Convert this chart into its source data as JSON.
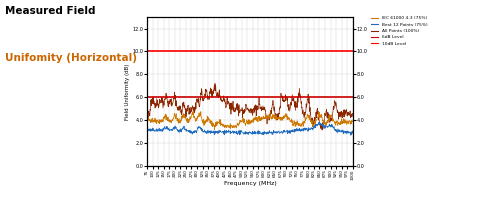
{
  "title_line1": "Measured Field",
  "title_line2": "Unifomity (Horizontal)",
  "xlabel": "Frequency (MHz)",
  "ylabel": "Field Uniformity (dB)",
  "ylim": [
    0.0,
    13.0
  ],
  "xlim": [
    75,
    1000
  ],
  "yticks": [
    0.0,
    2.0,
    4.0,
    6.0,
    8.0,
    10.0,
    12.0
  ],
  "xticks": [
    75,
    100,
    125,
    150,
    175,
    200,
    225,
    250,
    275,
    300,
    325,
    350,
    375,
    400,
    425,
    450,
    475,
    500,
    525,
    550,
    575,
    600,
    625,
    650,
    675,
    700,
    725,
    750,
    775,
    800,
    825,
    850,
    875,
    900,
    925,
    950,
    975,
    1000
  ],
  "hline_6dB": 6.0,
  "hline_10dB": 10.0,
  "hline_6dB_color": "#cc0000",
  "hline_10dB_color": "#ff0000",
  "color_IEC": "#cc7700",
  "color_best12": "#1f6bbf",
  "color_all": "#8b2500",
  "legend_labels": [
    "IEC 61000 4-3 (75%)",
    "Best 12 Points (75%)",
    "All Points (100%)",
    "6dB Level",
    "10dB Level"
  ],
  "background_color": "#ffffff",
  "grid_color": "#cccccc",
  "title_color_line1": "#000000",
  "title_color_line2": "#cc6600"
}
